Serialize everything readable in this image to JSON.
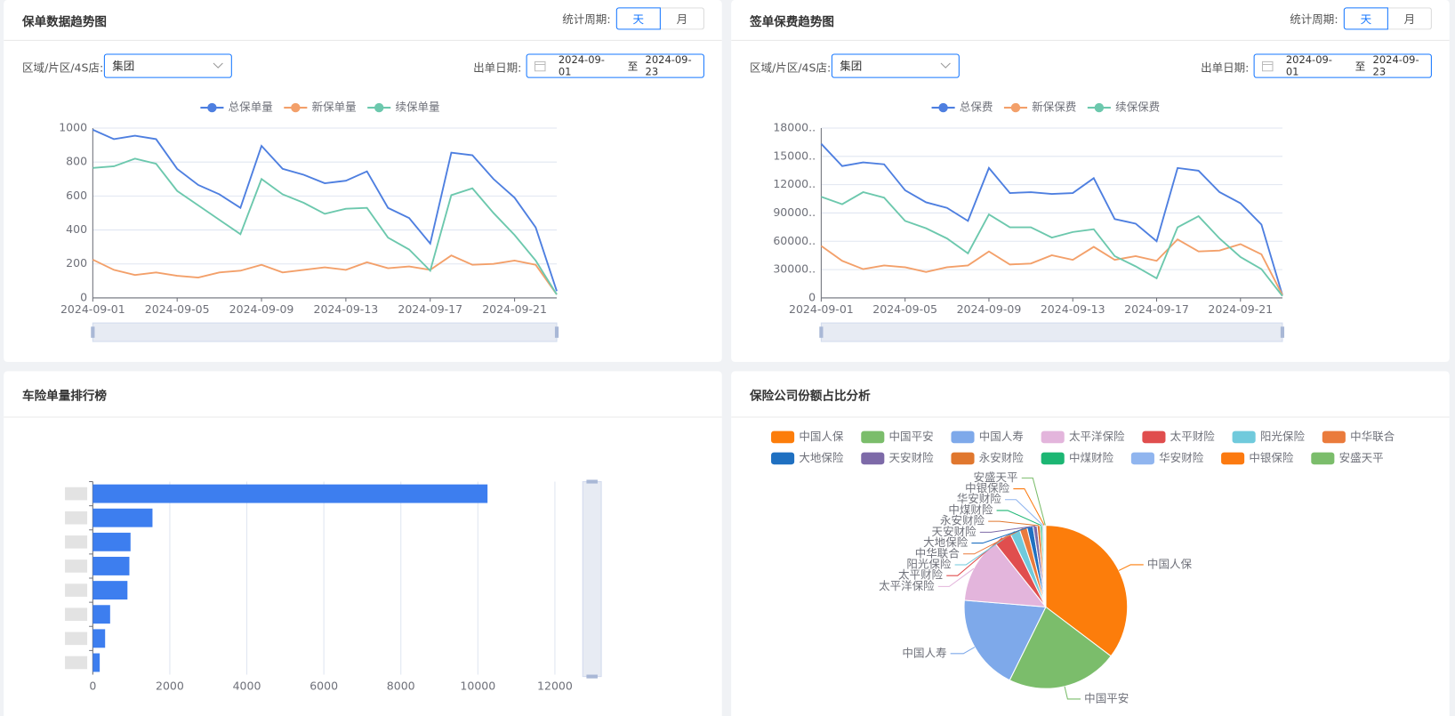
{
  "panels": [
    {
      "title": "保单数据趋势图",
      "period_label": "统计周期:",
      "period_options": [
        "天",
        "月"
      ],
      "region_label": "区域/片区/4S店:",
      "region_value": "集团",
      "date_label": "出单日期:",
      "date_start": "2024-09-01",
      "date_separator": "至",
      "date_end": "2024-09-23"
    },
    {
      "title": "签单保费趋势图",
      "period_label": "统计周期:",
      "period_options": [
        "天",
        "月"
      ],
      "region_label": "区域/片区/4S店:",
      "region_value": "集团",
      "date_label": "出单日期:",
      "date_start": "2024-09-01",
      "date_separator": "至",
      "date_end": "2024-09-23"
    },
    {
      "title": "车险单量排行榜"
    },
    {
      "title": "保险公司份额占比分析"
    }
  ],
  "chart_data": [
    {
      "type": "line",
      "categories": [
        "2024-09-01",
        null,
        null,
        null,
        "2024-09-05",
        null,
        null,
        null,
        "2024-09-09",
        null,
        null,
        null,
        "2024-09-13",
        null,
        null,
        null,
        "2024-09-17",
        null,
        null,
        null,
        "2024-09-21",
        null,
        null
      ],
      "series": [
        {
          "name": "总保单量",
          "color": "#4e7fe0",
          "values": [
            990,
            935,
            955,
            935,
            760,
            665,
            610,
            530,
            895,
            760,
            725,
            675,
            690,
            745,
            530,
            470,
            320,
            855,
            840,
            700,
            590,
            415,
            40
          ]
        },
        {
          "name": "新保单量",
          "color": "#f3a06a",
          "values": [
            225,
            165,
            135,
            150,
            130,
            120,
            150,
            160,
            195,
            150,
            165,
            180,
            165,
            210,
            175,
            185,
            165,
            250,
            195,
            200,
            220,
            195,
            20
          ]
        },
        {
          "name": "续保单量",
          "color": "#6cc8ad",
          "values": [
            765,
            775,
            820,
            790,
            630,
            545,
            460,
            375,
            700,
            610,
            560,
            495,
            525,
            530,
            355,
            285,
            160,
            605,
            645,
            500,
            370,
            220,
            20
          ]
        }
      ],
      "ylim": [
        0,
        1000
      ],
      "yticks": [
        0,
        200,
        400,
        600,
        800,
        1000
      ],
      "grid": true,
      "legend": "top"
    },
    {
      "type": "line",
      "categories": [
        "2024-09-01",
        null,
        null,
        null,
        "2024-09-05",
        null,
        null,
        null,
        "2024-09-09",
        null,
        null,
        null,
        "2024-09-13",
        null,
        null,
        null,
        "2024-09-17",
        null,
        null,
        null,
        "2024-09-21",
        null,
        null
      ],
      "series": [
        {
          "name": "总保费",
          "color": "#4e7fe0",
          "values": [
            163300,
            139700,
            143600,
            141600,
            114100,
            101300,
            95400,
            81600,
            137700,
            111100,
            112100,
            110200,
            111100,
            126900,
            83600,
            78700,
            60000,
            137700,
            134800,
            112100,
            100300,
            77700,
            3000
          ]
        },
        {
          "name": "新保保费",
          "color": "#f3a06a",
          "values": [
            55100,
            39300,
            30500,
            34400,
            32500,
            27500,
            32500,
            34400,
            49200,
            35400,
            36400,
            45200,
            40300,
            54100,
            40300,
            44300,
            39300,
            62000,
            49200,
            50200,
            57000,
            46200,
            3000
          ]
        },
        {
          "name": "续保保费",
          "color": "#6cc8ad",
          "values": [
            107200,
            99300,
            112100,
            106200,
            81600,
            73800,
            63000,
            47200,
            88500,
            74800,
            74800,
            63900,
            69800,
            72800,
            44300,
            33400,
            20700,
            74800,
            86600,
            63000,
            43300,
            30500,
            2000
          ]
        }
      ],
      "ylim": [
        0,
        180000
      ],
      "yticks": [
        0,
        {
          "value": 30000,
          "label": "30000.."
        },
        {
          "value": 60000,
          "label": "60000.."
        },
        {
          "value": 90000,
          "label": "90000.."
        },
        {
          "value": 120000,
          "label": "12000.."
        },
        {
          "value": 150000,
          "label": "15000.."
        },
        {
          "value": 180000,
          "label": "18000.."
        }
      ],
      "grid": true,
      "legend": "top"
    },
    {
      "type": "bar",
      "orientation": "horizontal",
      "categories": [
        null,
        null,
        null,
        null,
        null,
        null,
        null,
        null
      ],
      "values": [
        10250,
        1550,
        980,
        950,
        900,
        450,
        320,
        180
      ],
      "color": "#3d7eef",
      "xlim": [
        0,
        12000
      ],
      "xticks": [
        0,
        2000,
        4000,
        6000,
        8000,
        10000,
        12000
      ],
      "grid": true
    },
    {
      "type": "pie",
      "categories": [
        "中国人保",
        "中国平安",
        "中国人寿",
        "太平洋保险",
        "太平财险",
        "阳光保险",
        "中华联合",
        "大地保险",
        "天安财险",
        "永安财险",
        "中煤财险",
        "华安财险",
        "中银保险",
        "安盛天平"
      ],
      "values": [
        35.3,
        22,
        19,
        13,
        3.5,
        2,
        1.5,
        1.2,
        0.8,
        0.6,
        0.4,
        0.3,
        0.2,
        0.2
      ],
      "colors": [
        "#fc7d0b",
        "#7bbd6b",
        "#7ea9ea",
        "#e3b5dc",
        "#e04e4e",
        "#70cadc",
        "#ea7b3c",
        "#1f70c1",
        "#7d6aa8",
        "#e0772e",
        "#1cb673",
        "#90b5ef",
        "#fc7a10",
        "#7bbd6b"
      ],
      "legend": "top"
    }
  ]
}
